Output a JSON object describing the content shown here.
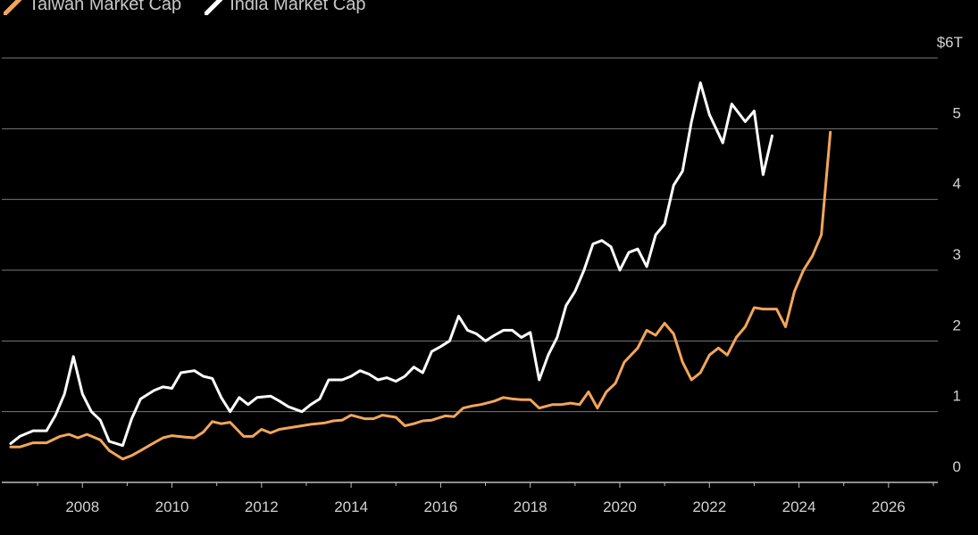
{
  "colors": {
    "background": "#000000",
    "grid": "#7a7a7a",
    "axis": "#bdbdbd",
    "taiwan": "#f2a65a",
    "india": "#ffffff"
  },
  "chart_data": {
    "type": "line",
    "title": "",
    "xlabel": "",
    "ylabel": "",
    "legend_position": "top-left",
    "grid": true,
    "xlim": [
      2006.2,
      2027.1
    ],
    "ylim": [
      0,
      6
    ],
    "x_ticks": [
      2008,
      2010,
      2012,
      2014,
      2016,
      2018,
      2020,
      2022,
      2024,
      2026
    ],
    "x_tick_labels": [
      "2008",
      "2010",
      "2012",
      "2014",
      "2016",
      "2018",
      "2020",
      "2022",
      "2024",
      "2026"
    ],
    "y_ticks": [
      0,
      1,
      2,
      3,
      4,
      5,
      6
    ],
    "y_tick_labels": [
      "0",
      "1",
      "2",
      "3",
      "4",
      "5",
      "$6T"
    ],
    "series": [
      {
        "name": "Taiwan Market Cap",
        "color": "#f2a65a",
        "points": [
          [
            2006.4,
            0.5
          ],
          [
            2006.6,
            0.5
          ],
          [
            2006.9,
            0.56
          ],
          [
            2007.2,
            0.56
          ],
          [
            2007.5,
            0.65
          ],
          [
            2007.7,
            0.68
          ],
          [
            2007.9,
            0.63
          ],
          [
            2008.1,
            0.68
          ],
          [
            2008.4,
            0.6
          ],
          [
            2008.6,
            0.45
          ],
          [
            2008.9,
            0.33
          ],
          [
            2009.1,
            0.38
          ],
          [
            2009.3,
            0.45
          ],
          [
            2009.6,
            0.56
          ],
          [
            2009.8,
            0.63
          ],
          [
            2010.0,
            0.66
          ],
          [
            2010.3,
            0.64
          ],
          [
            2010.5,
            0.63
          ],
          [
            2010.7,
            0.71
          ],
          [
            2010.9,
            0.86
          ],
          [
            2011.1,
            0.83
          ],
          [
            2011.3,
            0.85
          ],
          [
            2011.6,
            0.65
          ],
          [
            2011.8,
            0.65
          ],
          [
            2012.0,
            0.75
          ],
          [
            2012.2,
            0.7
          ],
          [
            2012.4,
            0.75
          ],
          [
            2012.7,
            0.78
          ],
          [
            2012.9,
            0.8
          ],
          [
            2013.1,
            0.82
          ],
          [
            2013.4,
            0.84
          ],
          [
            2013.6,
            0.87
          ],
          [
            2013.8,
            0.88
          ],
          [
            2014.0,
            0.95
          ],
          [
            2014.3,
            0.9
          ],
          [
            2014.5,
            0.9
          ],
          [
            2014.7,
            0.95
          ],
          [
            2015.0,
            0.92
          ],
          [
            2015.2,
            0.8
          ],
          [
            2015.4,
            0.83
          ],
          [
            2015.6,
            0.87
          ],
          [
            2015.8,
            0.88
          ],
          [
            2016.1,
            0.94
          ],
          [
            2016.3,
            0.93
          ],
          [
            2016.5,
            1.05
          ],
          [
            2016.7,
            1.08
          ],
          [
            2016.9,
            1.1
          ],
          [
            2017.2,
            1.15
          ],
          [
            2017.4,
            1.2
          ],
          [
            2017.6,
            1.18
          ],
          [
            2017.8,
            1.17
          ],
          [
            2018.0,
            1.17
          ],
          [
            2018.2,
            1.05
          ],
          [
            2018.5,
            1.1
          ],
          [
            2018.7,
            1.1
          ],
          [
            2018.9,
            1.12
          ],
          [
            2019.1,
            1.1
          ],
          [
            2019.3,
            1.28
          ],
          [
            2019.5,
            1.05
          ],
          [
            2019.7,
            1.28
          ],
          [
            2019.9,
            1.4
          ],
          [
            2020.1,
            1.7
          ],
          [
            2020.4,
            1.9
          ],
          [
            2020.6,
            2.15
          ],
          [
            2020.8,
            2.08
          ],
          [
            2021.0,
            2.25
          ],
          [
            2021.2,
            2.1
          ],
          [
            2021.4,
            1.7
          ],
          [
            2021.6,
            1.45
          ],
          [
            2021.8,
            1.55
          ],
          [
            2022.0,
            1.8
          ],
          [
            2022.2,
            1.9
          ],
          [
            2022.4,
            1.8
          ],
          [
            2022.6,
            2.05
          ],
          [
            2022.8,
            2.2
          ],
          [
            2023.0,
            2.47
          ],
          [
            2023.2,
            2.45
          ],
          [
            2023.5,
            2.45
          ],
          [
            2023.7,
            2.2
          ],
          [
            2023.9,
            2.7
          ],
          [
            2024.1,
            3.0
          ],
          [
            2024.3,
            3.2
          ],
          [
            2024.5,
            3.5
          ],
          [
            2024.7,
            4.95
          ]
        ]
      },
      {
        "name": "India Market Cap",
        "color": "#ffffff",
        "points": [
          [
            2006.4,
            0.55
          ],
          [
            2006.6,
            0.65
          ],
          [
            2006.9,
            0.73
          ],
          [
            2007.2,
            0.73
          ],
          [
            2007.4,
            0.95
          ],
          [
            2007.6,
            1.25
          ],
          [
            2007.8,
            1.78
          ],
          [
            2008.0,
            1.25
          ],
          [
            2008.2,
            1.0
          ],
          [
            2008.4,
            0.88
          ],
          [
            2008.6,
            0.58
          ],
          [
            2008.9,
            0.52
          ],
          [
            2009.1,
            0.9
          ],
          [
            2009.3,
            1.18
          ],
          [
            2009.6,
            1.3
          ],
          [
            2009.8,
            1.35
          ],
          [
            2010.0,
            1.33
          ],
          [
            2010.2,
            1.55
          ],
          [
            2010.5,
            1.58
          ],
          [
            2010.7,
            1.5
          ],
          [
            2010.9,
            1.47
          ],
          [
            2011.1,
            1.2
          ],
          [
            2011.3,
            1.0
          ],
          [
            2011.5,
            1.2
          ],
          [
            2011.7,
            1.1
          ],
          [
            2011.9,
            1.2
          ],
          [
            2012.2,
            1.22
          ],
          [
            2012.4,
            1.15
          ],
          [
            2012.6,
            1.07
          ],
          [
            2012.9,
            1.0
          ],
          [
            2013.1,
            1.1
          ],
          [
            2013.3,
            1.18
          ],
          [
            2013.5,
            1.45
          ],
          [
            2013.8,
            1.45
          ],
          [
            2014.0,
            1.5
          ],
          [
            2014.2,
            1.58
          ],
          [
            2014.4,
            1.53
          ],
          [
            2014.6,
            1.45
          ],
          [
            2014.8,
            1.48
          ],
          [
            2015.0,
            1.43
          ],
          [
            2015.2,
            1.5
          ],
          [
            2015.4,
            1.63
          ],
          [
            2015.6,
            1.55
          ],
          [
            2015.8,
            1.85
          ],
          [
            2016.0,
            1.92
          ],
          [
            2016.2,
            2.0
          ],
          [
            2016.4,
            2.35
          ],
          [
            2016.6,
            2.15
          ],
          [
            2016.8,
            2.1
          ],
          [
            2017.0,
            2.0
          ],
          [
            2017.2,
            2.08
          ],
          [
            2017.4,
            2.15
          ],
          [
            2017.6,
            2.15
          ],
          [
            2017.8,
            2.05
          ],
          [
            2018.0,
            2.12
          ],
          [
            2018.2,
            1.45
          ],
          [
            2018.4,
            1.8
          ],
          [
            2018.6,
            2.05
          ],
          [
            2018.8,
            2.5
          ],
          [
            2019.0,
            2.7
          ],
          [
            2019.2,
            3.0
          ],
          [
            2019.4,
            3.37
          ],
          [
            2019.6,
            3.42
          ],
          [
            2019.8,
            3.33
          ],
          [
            2020.0,
            3.0
          ],
          [
            2020.2,
            3.25
          ],
          [
            2020.4,
            3.3
          ],
          [
            2020.6,
            3.05
          ],
          [
            2020.8,
            3.5
          ],
          [
            2021.0,
            3.65
          ],
          [
            2021.2,
            4.2
          ],
          [
            2021.4,
            4.4
          ],
          [
            2021.6,
            5.1
          ],
          [
            2021.8,
            5.65
          ],
          [
            2022.0,
            5.2
          ],
          [
            2022.3,
            4.8
          ],
          [
            2022.5,
            5.35
          ],
          [
            2022.8,
            5.1
          ],
          [
            2023.0,
            5.25
          ],
          [
            2023.2,
            4.35
          ],
          [
            2023.4,
            4.9
          ]
        ]
      }
    ]
  }
}
